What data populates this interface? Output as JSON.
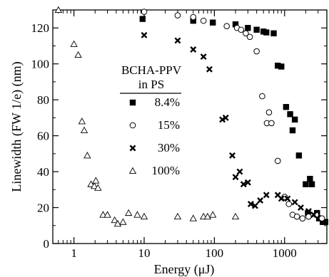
{
  "chart_data": {
    "type": "scatter",
    "xlabel": "Energy (μJ)",
    "ylabel": "Linewidth (FW 1/e) (nm)",
    "xscale": "log",
    "xlim": [
      0.5,
      4000
    ],
    "ylim": [
      0,
      130
    ],
    "x_ticks": [
      1,
      10,
      100,
      1000
    ],
    "x_tick_labels": [
      "1",
      "10",
      "100",
      "1000"
    ],
    "y_ticks": [
      0,
      20,
      40,
      60,
      80,
      100,
      120
    ],
    "y_tick_labels": [
      "0",
      "20",
      "40",
      "60",
      "80",
      "100",
      "120"
    ],
    "grid": false,
    "legend": {
      "title_line1": "BCHA-PPV",
      "title_line2": "in PS",
      "placement": "center"
    },
    "series": [
      {
        "name": "8.4%",
        "marker": "filled-square",
        "points": [
          [
            9.5,
            125
          ],
          [
            50,
            124
          ],
          [
            95,
            123
          ],
          [
            200,
            122
          ],
          [
            300,
            120
          ],
          [
            400,
            119
          ],
          [
            500,
            118
          ],
          [
            550,
            117.5
          ],
          [
            700,
            117
          ],
          [
            800,
            99
          ],
          [
            900,
            98.5
          ],
          [
            1050,
            76
          ],
          [
            1200,
            72
          ],
          [
            1300,
            63
          ],
          [
            1400,
            69
          ],
          [
            1600,
            49
          ],
          [
            2000,
            33
          ],
          [
            2300,
            36
          ],
          [
            2450,
            33
          ],
          [
            2150,
            17
          ],
          [
            2900,
            17
          ],
          [
            3100,
            14
          ],
          [
            3500,
            12
          ],
          [
            3800,
            12
          ]
        ]
      },
      {
        "name": "15%",
        "marker": "open-circle",
        "points": [
          [
            10,
            129
          ],
          [
            30,
            127
          ],
          [
            50,
            126
          ],
          [
            70,
            124
          ],
          [
            150,
            121
          ],
          [
            210,
            120
          ],
          [
            240,
            119
          ],
          [
            280,
            117
          ],
          [
            320,
            115
          ],
          [
            400,
            107
          ],
          [
            480,
            82
          ],
          [
            560,
            67
          ],
          [
            600,
            73
          ],
          [
            650,
            67
          ],
          [
            800,
            46
          ],
          [
            1000,
            26
          ],
          [
            1150,
            22
          ],
          [
            1300,
            16
          ],
          [
            1500,
            15
          ],
          [
            1800,
            14
          ],
          [
            2200,
            15
          ],
          [
            2800,
            16
          ],
          [
            3400,
            14
          ]
        ]
      },
      {
        "name": "30%",
        "marker": "x-cross",
        "points": [
          [
            10,
            116
          ],
          [
            30,
            113
          ],
          [
            50,
            108
          ],
          [
            70,
            104
          ],
          [
            85,
            97
          ],
          [
            130,
            69
          ],
          [
            145,
            70
          ],
          [
            180,
            49
          ],
          [
            200,
            37
          ],
          [
            230,
            40
          ],
          [
            260,
            33
          ],
          [
            300,
            34
          ],
          [
            330,
            22
          ],
          [
            380,
            21
          ],
          [
            450,
            24
          ],
          [
            550,
            27
          ],
          [
            800,
            27
          ],
          [
            900,
            25
          ],
          [
            1100,
            25
          ],
          [
            1400,
            23
          ],
          [
            1700,
            20
          ],
          [
            2200,
            18
          ],
          [
            2600,
            16
          ]
        ]
      },
      {
        "name": "100%",
        "marker": "open-triangle",
        "points": [
          [
            0.6,
            130
          ],
          [
            1.0,
            111
          ],
          [
            1.15,
            105
          ],
          [
            1.3,
            68
          ],
          [
            1.4,
            63
          ],
          [
            1.55,
            49
          ],
          [
            1.75,
            33
          ],
          [
            1.95,
            32
          ],
          [
            2.05,
            35
          ],
          [
            2.2,
            31
          ],
          [
            2.6,
            16
          ],
          [
            3.0,
            16
          ],
          [
            3.8,
            13
          ],
          [
            4.2,
            11
          ],
          [
            5.0,
            12
          ],
          [
            6.0,
            17
          ],
          [
            8.0,
            16
          ],
          [
            10,
            15
          ],
          [
            30,
            15
          ],
          [
            50,
            14
          ],
          [
            70,
            15
          ],
          [
            80,
            15
          ],
          [
            95,
            16
          ],
          [
            200,
            15
          ]
        ]
      }
    ]
  }
}
